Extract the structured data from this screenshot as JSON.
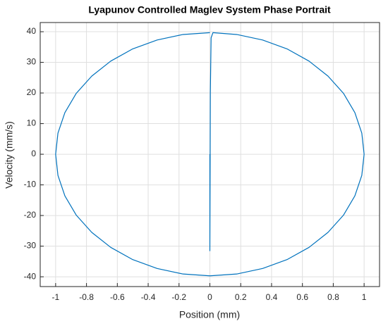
{
  "chart_data": {
    "type": "line",
    "title": "Lyapunov Controlled Maglev System Phase Portrait",
    "x_label": "Position (mm)",
    "y_label": "Velocity (mm/s)",
    "xlim": [
      -1.1,
      1.1
    ],
    "ylim": [
      -43.2,
      43
    ],
    "xticks": [
      -1,
      -0.8,
      -0.6,
      -0.4,
      -0.2,
      0,
      0.2,
      0.4,
      0.6,
      0.8,
      1
    ],
    "yticks": [
      -40,
      -30,
      -20,
      -10,
      0,
      10,
      20,
      30,
      40
    ],
    "grid": true,
    "series": [
      {
        "color": "#0072bd",
        "x": [
          0,
          0,
          0.003,
          0.008,
          0.02,
          0.174,
          0.342,
          0.5,
          0.643,
          0.766,
          0.866,
          0.94,
          0.985,
          1,
          0.985,
          0.94,
          0.866,
          0.766,
          0.643,
          0.5,
          0.342,
          0.174,
          0,
          -0.174,
          -0.342,
          -0.5,
          -0.643,
          -0.766,
          -0.866,
          -0.94,
          -0.985,
          -1,
          -0.985,
          -0.94,
          -0.866,
          -0.766,
          -0.643,
          -0.5,
          -0.342,
          -0.174,
          0
        ],
        "y": [
          0,
          -31.5,
          20,
          38,
          39.7,
          39.1,
          37.3,
          34.4,
          30.4,
          25.5,
          19.9,
          13.6,
          6.9,
          0,
          -6.9,
          -13.6,
          -19.9,
          -25.5,
          -30.4,
          -34.4,
          -37.3,
          -39.1,
          -39.7,
          -39.1,
          -37.3,
          -34.4,
          -30.4,
          -25.5,
          -19.9,
          -13.6,
          -6.9,
          0,
          6.9,
          13.6,
          19.9,
          25.5,
          30.4,
          34.4,
          37.3,
          39.1,
          39.7
        ]
      }
    ]
  }
}
